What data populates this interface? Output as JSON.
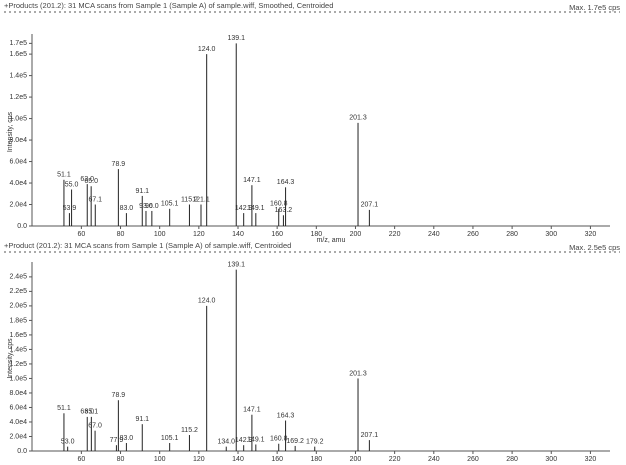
{
  "chart_data": [
    {
      "type": "bar",
      "title": "+Products (201.2): 31 MCA scans from Sample 1 (Sample A) of sample.wiff, Smoothed, Centroided",
      "max_label": "Max. 1.7e5 cps",
      "xlabel": "m/z, amu",
      "ylabel": "Intensity, cps",
      "color": "#222222",
      "x": [
        51.1,
        53.9,
        55.0,
        63.0,
        65.0,
        67.1,
        78.9,
        83.0,
        91.1,
        93.0,
        96.0,
        105.1,
        115.2,
        121.1,
        124.0,
        139.1,
        142.9,
        147.1,
        149.1,
        160.8,
        163.2,
        164.3,
        201.3,
        207.1
      ],
      "labels": [
        "51.1",
        "53.9",
        "55.0",
        "63.0",
        "65.0",
        "67.1",
        "78.9",
        "83.0",
        "91.1",
        "93.0",
        "96.0",
        "105.1",
        "115.2",
        "121.1",
        "124.0",
        "139.1",
        "142.9",
        "147.1",
        "149.1",
        "160.8",
        "163.2",
        "164.3",
        "201.3",
        "207.1"
      ],
      "values": [
        43000,
        12000,
        34000,
        39000,
        37000,
        20000,
        53000,
        12000,
        28000,
        14000,
        14000,
        16000,
        20000,
        20000,
        160000,
        170000,
        12000,
        38000,
        12000,
        16000,
        10000,
        36000,
        96000,
        15000
      ],
      "xlim": [
        45,
        330
      ],
      "xticks": [
        60,
        80,
        100,
        120,
        140,
        160,
        180,
        200,
        220,
        240,
        260,
        280,
        300,
        320
      ],
      "ylim": [
        0,
        175000
      ],
      "yticks": [
        {
          "value": 0,
          "label": "0.0"
        },
        {
          "value": 20000,
          "label": "2.0e4"
        },
        {
          "value": 40000,
          "label": "4.0e4"
        },
        {
          "value": 60000,
          "label": "6.0e4"
        },
        {
          "value": 80000,
          "label": "8.0e4"
        },
        {
          "value": 100000,
          "label": "1.0e5"
        },
        {
          "value": 120000,
          "label": "1.2e5"
        },
        {
          "value": 140000,
          "label": "1.4e5"
        },
        {
          "value": 160000,
          "label": "1.6e5"
        },
        {
          "value": 170000,
          "label": "1.7e5"
        }
      ]
    },
    {
      "type": "bar",
      "title": "+Product (201.2): 31 MCA scans from Sample 1 (Sample A) of sample.wiff, Centroided",
      "max_label": "Max. 2.5e5 cps",
      "ylabel": "Intensity, cps",
      "color": "#222222",
      "x": [
        51.1,
        53.0,
        63.0,
        65.1,
        67.0,
        77.9,
        78.9,
        83.0,
        91.1,
        105.1,
        115.2,
        124.0,
        134.0,
        139.1,
        142.9,
        147.1,
        149.1,
        160.8,
        164.3,
        169.2,
        179.2,
        201.3,
        207.1
      ],
      "labels": [
        "51.1",
        "53.0",
        "63.0",
        "65.1",
        "67.0",
        "77.9",
        "78.9",
        "83.0",
        "91.1",
        "105.1",
        "115.2",
        "124.0",
        "134.0",
        "139.1",
        "142.9",
        "147.1",
        "149.1",
        "160.8",
        "164.3",
        "169.2",
        "179.2",
        "201.3",
        "207.1"
      ],
      "values": [
        52000,
        6000,
        47000,
        47000,
        28000,
        8000,
        70000,
        11000,
        37000,
        11000,
        22000,
        200000,
        6000,
        250000,
        8000,
        50000,
        9000,
        10000,
        42000,
        7000,
        6000,
        100000,
        15000
      ],
      "xlim": [
        45,
        330
      ],
      "xticks": [
        60,
        80,
        100,
        120,
        140,
        160,
        180,
        200,
        220,
        240,
        260,
        280,
        300,
        320
      ],
      "ylim": [
        0,
        255000
      ],
      "yticks": [
        {
          "value": 0,
          "label": "0.0"
        },
        {
          "value": 20000,
          "label": "2.0e4"
        },
        {
          "value": 40000,
          "label": "4.0e4"
        },
        {
          "value": 60000,
          "label": "6.0e4"
        },
        {
          "value": 80000,
          "label": "8.0e4"
        },
        {
          "value": 100000,
          "label": "1.0e5"
        },
        {
          "value": 120000,
          "label": "1.2e5"
        },
        {
          "value": 140000,
          "label": "1.4e5"
        },
        {
          "value": 160000,
          "label": "1.6e5"
        },
        {
          "value": 180000,
          "label": "1.8e5"
        },
        {
          "value": 200000,
          "label": "2.0e5"
        },
        {
          "value": 220000,
          "label": "2.2e5"
        },
        {
          "value": 240000,
          "label": "2.4e5"
        }
      ]
    }
  ]
}
